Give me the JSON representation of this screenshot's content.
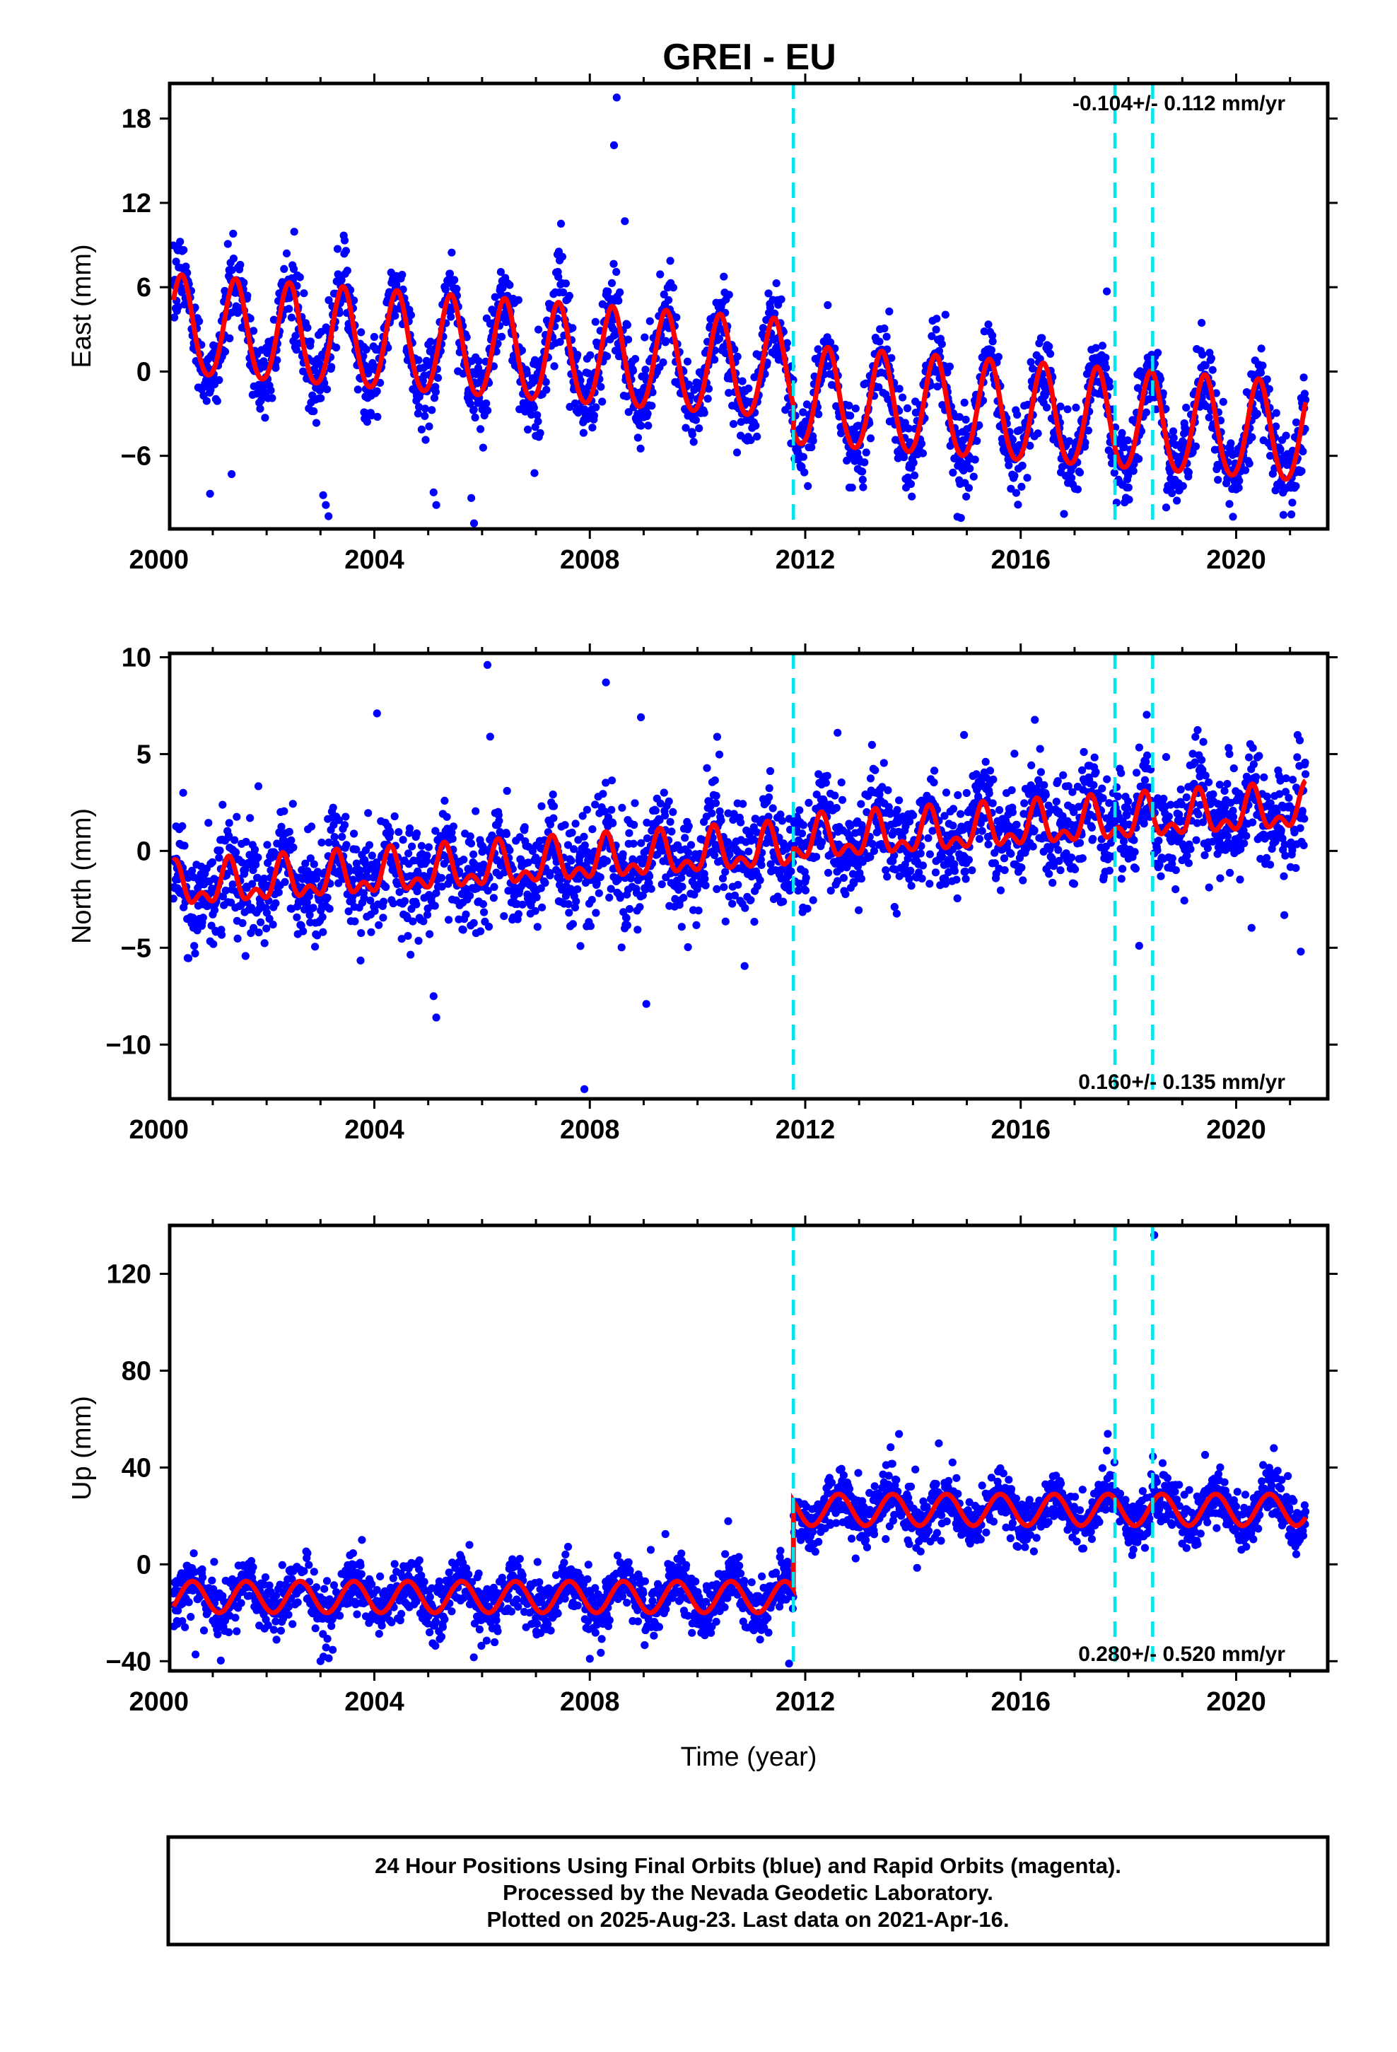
{
  "chart_data": {
    "title": "GREI - EU",
    "type": "scatter",
    "x_ticks": [
      "2000",
      "2004",
      "2008",
      "2012",
      "2016",
      "2020"
    ],
    "xlim": [
      2000.2,
      2021.7
    ],
    "xlabel": "Time (year)",
    "colors": {
      "data": "#0000ff",
      "model": "#ff0000",
      "offsets": "#00e5ee",
      "frame": "#000000"
    },
    "offset_epochs": [
      2011.78,
      2017.75,
      2018.45
    ],
    "data_range": [
      2000.27,
      2021.29
    ],
    "panels": [
      {
        "ylabel": "East (mm)",
        "ylim": [
          -11.2,
          20.5
        ],
        "y_ticks": [
          18,
          12,
          6,
          0,
          -6
        ],
        "rate": "-0.104+/- 0.112 mm/yr",
        "rate_position": "top-right",
        "model": {
          "base": 3.2,
          "slope": -0.28,
          "step": -1.8,
          "step_epoch": 2011.78,
          "annual_amp": 3.5,
          "semiannual_amp": 0.3,
          "peak_phase": 0.42
        },
        "scatter_sd": 1.4,
        "outliers": [
          [
            2000.95,
            -8.7
          ],
          [
            2001.35,
            -7.3
          ],
          [
            2003.05,
            -8.8
          ],
          [
            2003.1,
            -9.5
          ],
          [
            2003.15,
            -10.3
          ],
          [
            2005.1,
            -8.6
          ],
          [
            2005.15,
            -9.5
          ],
          [
            2005.8,
            -9.0
          ],
          [
            2005.85,
            -10.8
          ],
          [
            2008.45,
            16.1
          ],
          [
            2008.5,
            19.5
          ],
          [
            2008.65,
            10.7
          ],
          [
            2017.6,
            5.7
          ]
        ]
      },
      {
        "ylabel": "North (mm)",
        "ylim": [
          -12.8,
          10.2
        ],
        "y_ticks": [
          10,
          5,
          0,
          -5,
          -10
        ],
        "rate": "0.160+/- 0.135 mm/yr",
        "rate_position": "bottom-right",
        "model": {
          "base": -2.0,
          "slope": 0.18,
          "step": 0.3,
          "step_epoch": 2011.78,
          "annual_amp": 0.9,
          "semiannual_amp": 0.6,
          "peak_phase": 0.3
        },
        "scatter_sd": 1.3,
        "outliers": [
          [
            2004.05,
            7.1
          ],
          [
            2006.1,
            9.6
          ],
          [
            2006.15,
            5.9
          ],
          [
            2008.3,
            8.7
          ],
          [
            2008.95,
            6.9
          ],
          [
            2009.05,
            -7.9
          ],
          [
            2005.1,
            -7.5
          ],
          [
            2005.15,
            -8.6
          ],
          [
            2007.9,
            -12.3
          ],
          [
            2012.6,
            6.1
          ],
          [
            2018.2,
            -4.9
          ],
          [
            2021.2,
            -5.2
          ]
        ]
      },
      {
        "ylabel": "Up (mm)",
        "ylim": [
          -44,
          140
        ],
        "y_ticks": [
          120,
          80,
          40,
          0,
          -40
        ],
        "rate": "0.280+/- 0.520 mm/yr",
        "rate_position": "bottom-right",
        "model": {
          "base": -13.5,
          "slope": 0.0,
          "step": 36.0,
          "step_epoch": 2011.78,
          "annual_amp": 6.5,
          "semiannual_amp": 0.0,
          "peak_phase": 0.62
        },
        "scatter_sd": 5.5,
        "outliers": [
          [
            2018.48,
            136
          ],
          [
            2017.6,
            47
          ],
          [
            2020.7,
            48
          ],
          [
            2003.0,
            -40
          ],
          [
            2008.0,
            -39
          ],
          [
            2011.7,
            -41
          ]
        ]
      }
    ]
  },
  "footer": {
    "line1": "24 Hour Positions Using Final Orbits (blue) and Rapid Orbits (magenta).",
    "line2": "Processed by the Nevada Geodetic Laboratory.",
    "line3": "Plotted on 2025-Aug-23. Last data on 2021-Apr-16."
  }
}
